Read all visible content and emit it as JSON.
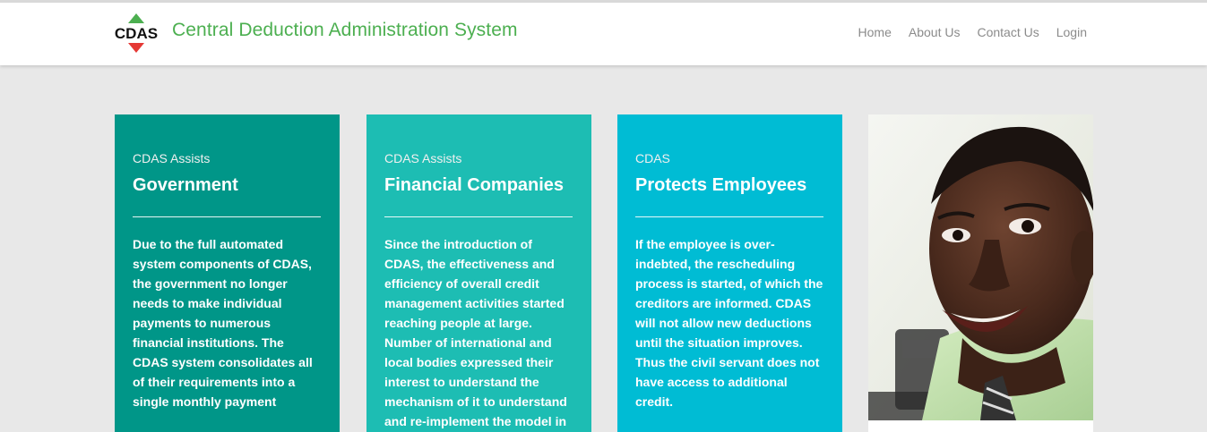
{
  "header": {
    "logo_text": "CDAS",
    "title": "Central Deduction Administration System",
    "nav": [
      {
        "label": "Home"
      },
      {
        "label": "About Us"
      },
      {
        "label": "Contact Us"
      },
      {
        "label": "Login"
      }
    ]
  },
  "cards": [
    {
      "kicker": "CDAS Assists",
      "heading": "Government",
      "body": "Due to the full automated system components of CDAS, the government no longer needs to make individual payments to numerous financial institutions. The CDAS system consolidates all of their requirements into a single monthly payment",
      "color": "#009688"
    },
    {
      "kicker": "CDAS Assists",
      "heading": "Financial Companies",
      "body": "Since the introduction of CDAS, the effectiveness and efficiency of overall credit management activities started reaching people at large. Number of international and local bodies expressed their interest to understand the mechanism of it to understand and re-implement the model in other economies.",
      "color": "#1dbdb3"
    },
    {
      "kicker": "CDAS",
      "heading": "Protects Employees",
      "body": "If the employee is over-indebted, the rescheduling process is started, of which the creditors are informed. CDAS will not allow new deductions until the situation improves. Thus the civil servant does not have access to additional credit.",
      "color": "#00bcd4"
    }
  ],
  "colors": {
    "brand_green": "#4caf50",
    "logo_red": "#e53935",
    "page_bg": "#e8e8e8"
  },
  "icons": {
    "photo": "smiling-man-photo"
  }
}
